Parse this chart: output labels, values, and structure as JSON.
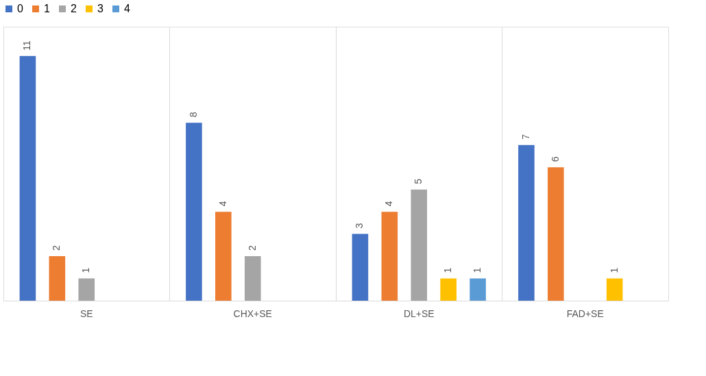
{
  "chart_data": {
    "type": "bar",
    "categories": [
      "SE",
      "CHX+SE",
      "DL+SE",
      "FAD+SE"
    ],
    "series": [
      {
        "name": "0",
        "color": "#4472c4",
        "values": [
          11,
          8,
          3,
          7
        ]
      },
      {
        "name": "1",
        "color": "#ed7d31",
        "values": [
          2,
          4,
          4,
          6
        ]
      },
      {
        "name": "2",
        "color": "#a5a5a5",
        "values": [
          1,
          2,
          5,
          null
        ]
      },
      {
        "name": "3",
        "color": "#ffc000",
        "values": [
          null,
          null,
          1,
          1
        ]
      },
      {
        "name": "4",
        "color": "#5b9bd5",
        "values": [
          null,
          null,
          1,
          null
        ]
      }
    ],
    "data_labels": true,
    "grid": "x",
    "legend": "top"
  }
}
